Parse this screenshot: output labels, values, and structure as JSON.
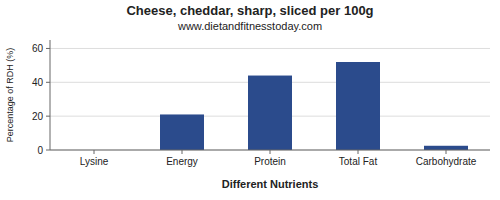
{
  "chart_data": {
    "type": "bar",
    "title": "Cheese, cheddar, sharp, sliced per 100g",
    "subtitle": "www.dietandfitnesstoday.com",
    "xlabel": "Different Nutrients",
    "ylabel": "Percentage of RDH (%)",
    "categories": [
      "Lysine",
      "Energy",
      "Protein",
      "Total Fat",
      "Carbohydrate"
    ],
    "values": [
      0,
      21,
      44,
      52,
      2.5
    ],
    "color": "#2b4b8c",
    "ylim": [
      0,
      65
    ],
    "yticks": [
      0,
      20,
      40,
      60
    ],
    "grid": true
  }
}
